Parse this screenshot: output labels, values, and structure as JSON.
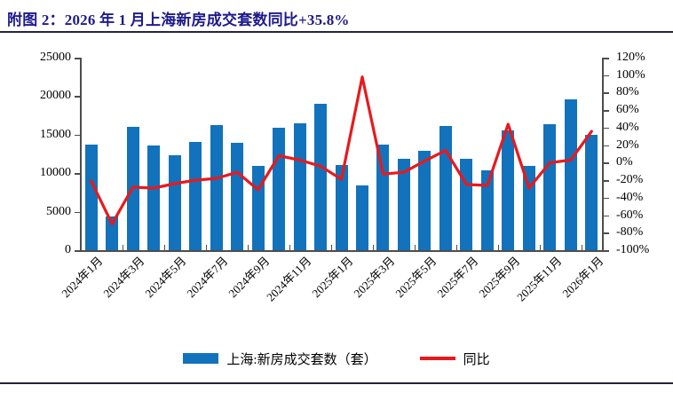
{
  "title": "附图 2：2026 年 1 月上海新房成交套数同比+35.8%",
  "colors": {
    "bar": "#1272BC",
    "line": "#E8191C",
    "title_text": "#1E1A8C",
    "rule": "#23233F",
    "axis": "#4D4D4D",
    "tick_text": "#000000"
  },
  "legend": {
    "bar_label": "上海:新房成交套数（套）",
    "line_label": "同比"
  },
  "chart_data": {
    "type": "bar",
    "title": "2026 年 1 月上海新房成交套数同比+35.8%",
    "categories": [
      "2024年1月",
      "2024年2月",
      "2024年3月",
      "2024年4月",
      "2024年5月",
      "2024年6月",
      "2024年7月",
      "2024年8月",
      "2024年9月",
      "2024年10月",
      "2024年11月",
      "2024年12月",
      "2025年1月",
      "2025年2月",
      "2025年3月",
      "2025年4月",
      "2025年5月",
      "2025年6月",
      "2025年7月",
      "2025年8月",
      "2025年9月",
      "2025年10月",
      "2025年11月",
      "2025年12月",
      "2026年1月"
    ],
    "x_axis_labels_shown": [
      "2024年1月",
      "2024年3月",
      "2024年5月",
      "2024年7月",
      "2024年9月",
      "2024年11月",
      "2025年1月",
      "2025年3月",
      "2025年5月",
      "2025年7月",
      "2025年9月",
      "2025年11月",
      "2026年1月"
    ],
    "series": [
      {
        "name": "上海:新房成交套数（套）",
        "type": "bar",
        "axis": "left",
        "color": "#1272BC",
        "values": [
          13700,
          4400,
          16000,
          13600,
          12300,
          14100,
          16200,
          13900,
          10900,
          15900,
          16500,
          19000,
          11050,
          8400,
          13700,
          11900,
          12900,
          16100,
          11900,
          10400,
          15600,
          11000,
          16400,
          19600,
          15000
        ]
      },
      {
        "name": "同比",
        "type": "line",
        "axis": "right",
        "unit": "%",
        "color": "#E8191C",
        "values": [
          -21,
          -70,
          -28,
          -29,
          -24,
          -20,
          -18,
          -11,
          -31,
          8,
          3,
          -4,
          -19,
          98,
          -13,
          -11,
          2,
          14,
          -25,
          -26,
          44,
          -29,
          0,
          3,
          35.8
        ]
      }
    ],
    "left_axis": {
      "min": 0,
      "max": 25000,
      "step": 5000,
      "tick_labels": [
        "0",
        "5000",
        "10000",
        "15000",
        "20000",
        "25000"
      ]
    },
    "right_axis": {
      "min": -100,
      "max": 120,
      "step": 20,
      "tick_labels": [
        "-100%",
        "-80%",
        "-60%",
        "-40%",
        "-20%",
        "0%",
        "20%",
        "40%",
        "60%",
        "80%",
        "100%",
        "120%"
      ]
    },
    "legend_position": "bottom",
    "grid": false
  }
}
